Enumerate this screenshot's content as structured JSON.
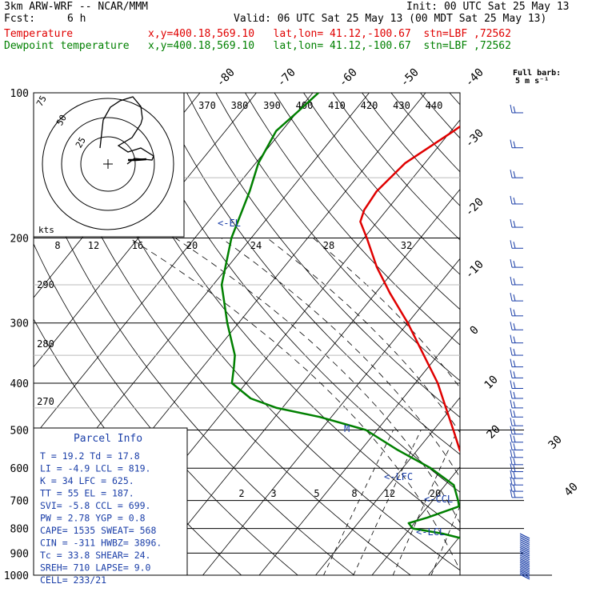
{
  "header": {
    "model": "3km ARW-WRF -- NCAR/MMM",
    "init": "Init: 00 UTC Sat 25 May 13",
    "fcst_label": "Fcst:",
    "fcst_value": "6 h",
    "valid": "Valid: 06 UTC Sat 25 May 13 (00 MDT Sat 25 May 13)",
    "line_temp": "Temperature            x,y=400.18,569.10   lat,lon= 41.12,-100.67  stn=LBF ,72562",
    "line_dew": "Dewpoint temperature   x,y=400.18,569.10   lat,lon= 41.12,-100.67  stn=LBF ,72562",
    "temp_color": "#e00000",
    "dew_color": "#008000"
  },
  "legend": {
    "barb_title": "Full barb:",
    "barb_units": "5 m s⁻¹"
  },
  "annotations": {
    "el": "<-EL",
    "lfc": "<-LFC",
    "ccl": "<-CCL",
    "lcl": "<-LCL",
    "m": "M",
    "kts": "kts",
    "hodo_rings": [
      "75",
      "50",
      "25"
    ]
  },
  "parcel_info": {
    "title": "Parcel Info",
    "rows": [
      "T  =  19.2 Td =  17.8",
      "LI =  -4.9 LCL =  819.",
      "K  =    34 LFC =  625.",
      "TT =    55 EL  =  187.",
      "SVI=  -5.8 CCL =  699.",
      "PW =  2.78 YGP =   0.8",
      "CAPE=  1535 SWEAT=  568",
      "CIN =  -311 HWBZ= 3896.",
      "Tc  =  33.8 SHEAR=  24.",
      "SREH=   710 LAPSE=  9.0",
      "CELL=  233/21"
    ]
  },
  "chart_data": {
    "type": "line",
    "title": "",
    "xlabel": "",
    "ylabel": "",
    "y_scale": "log-pressure (inverted)",
    "ylim": [
      1000,
      100
    ],
    "pressure_ticks": [
      100,
      200,
      300,
      400,
      500,
      600,
      700,
      800,
      900,
      1000
    ],
    "isotherm_labels": [
      "-80",
      "-70",
      "-60",
      "-50",
      "-40",
      "-30",
      "-20",
      "-10",
      "0",
      "10",
      "20",
      "30",
      "40"
    ],
    "theta_labels": [
      "370",
      "380",
      "390",
      "400",
      "410",
      "420",
      "430",
      "440"
    ],
    "hodograph_speed_labels": [
      "8",
      "12",
      "16",
      "20",
      "24",
      "28",
      "32"
    ],
    "adiabat_labels": [
      "290",
      "280",
      "270"
    ],
    "mixing_ratio_labels": [
      "2",
      "3",
      "5",
      "8",
      "12",
      "20"
    ],
    "series": [
      {
        "name": "Temperature",
        "color": "#e00000",
        "pressure": [
          910,
          870,
          830,
          790,
          770,
          730,
          700,
          650,
          600,
          550,
          500,
          450,
          400,
          350,
          300,
          260,
          230,
          200,
          185,
          175,
          160,
          140,
          120,
          100
        ],
        "temperature_c": [
          18.5,
          17,
          17.5,
          16,
          13.5,
          11.5,
          9,
          5.5,
          2,
          -2.5,
          -6.5,
          -11,
          -16,
          -22.5,
          -30,
          -37.5,
          -43.5,
          -49.5,
          -53,
          -54,
          -54.5,
          -53.5,
          -49.5,
          -45.5
        ]
      },
      {
        "name": "Dewpoint temperature",
        "color": "#008000",
        "pressure": [
          910,
          880,
          850,
          820,
          800,
          780,
          760,
          740,
          720,
          700,
          650,
          600,
          550,
          500,
          470,
          450,
          430,
          400,
          370,
          350,
          300,
          250,
          200,
          160,
          140,
          120,
          110,
          100
        ],
        "temperature_c": [
          14.5,
          16.5,
          13,
          6.5,
          0.5,
          -1,
          1.5,
          3.5,
          5.5,
          4.5,
          1.5,
          -5,
          -13.5,
          -22,
          -32,
          -41,
          -47,
          -52.5,
          -54.5,
          -56,
          -62,
          -68.5,
          -73.5,
          -77,
          -79.5,
          -81,
          -80,
          -79
        ]
      }
    ],
    "wind_profile": "barbs plotted along the right edge, 100–1000 hPa"
  }
}
